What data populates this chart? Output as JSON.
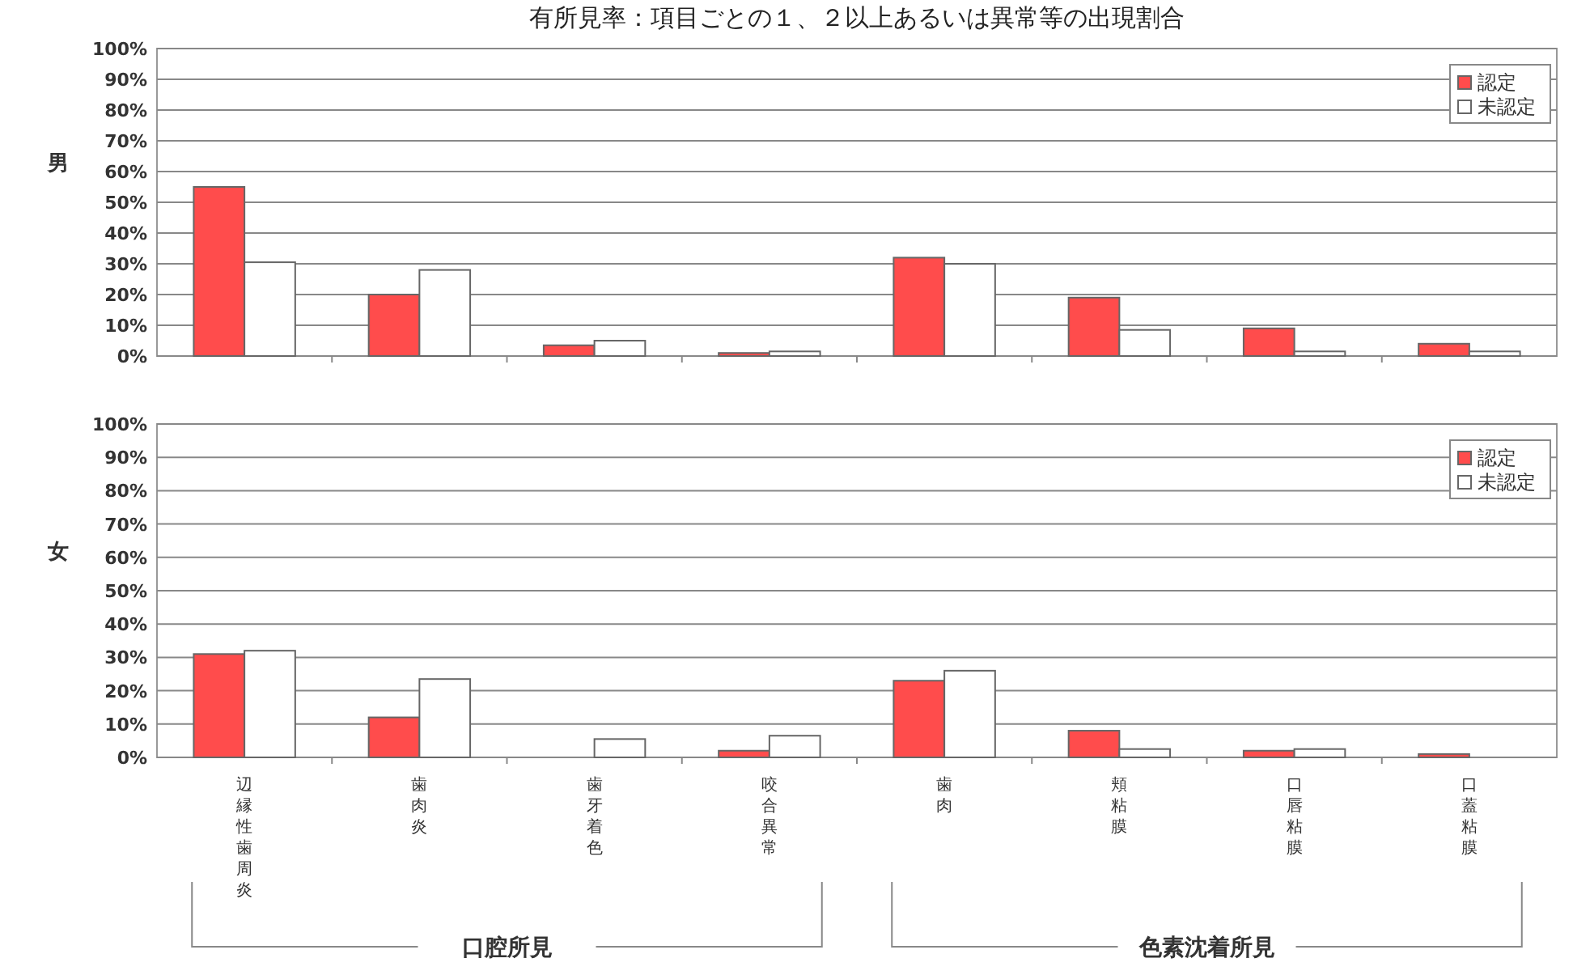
{
  "chart_data": [
    {
      "type": "bar",
      "title": "有所見率：項目ごとの１、２以上あるいは異常等の出現割合",
      "ylabel": "男",
      "categories": [
        "辺縁性歯周炎",
        "歯肉炎",
        "歯牙着色",
        "咬合異常",
        "歯肉",
        "頬粘膜",
        "口唇粘膜",
        "口蓋粘膜"
      ],
      "series": [
        {
          "name": "認定",
          "color": "#ff4c4c",
          "values": [
            55,
            20,
            3.5,
            1,
            32,
            19,
            9,
            4
          ]
        },
        {
          "name": "未認定",
          "color": "#ffffff",
          "values": [
            30.5,
            28,
            5,
            1.5,
            30,
            8.5,
            1.5,
            1.5
          ]
        }
      ],
      "ylim": [
        0,
        100
      ],
      "yticks": [
        {
          "value": 0,
          "label": "0%"
        },
        {
          "value": 10,
          "label": "10%"
        },
        {
          "value": 20,
          "label": "20%"
        },
        {
          "value": 30,
          "label": "30%"
        },
        {
          "value": 40,
          "label": "40%"
        },
        {
          "value": 50,
          "label": "50%"
        },
        {
          "value": 60,
          "label": "60%"
        },
        {
          "value": 70,
          "label": "70%"
        },
        {
          "value": 80,
          "label": "80%"
        },
        {
          "value": 90,
          "label": "90%"
        },
        {
          "value": 100,
          "label": "100%"
        }
      ],
      "grid": "y",
      "legend": "top right",
      "tick_labels": "y"
    },
    {
      "type": "bar",
      "ylabel": "女",
      "categories": [
        "辺縁性歯周炎",
        "歯肉炎",
        "歯牙着色",
        "咬合異常",
        "歯肉",
        "頬粘膜",
        "口唇粘膜",
        "口蓋粘膜"
      ],
      "series": [
        {
          "name": "認定",
          "color": "#ff4c4c",
          "values": [
            31,
            12,
            0,
            2,
            23,
            8,
            2,
            1
          ]
        },
        {
          "name": "未認定",
          "color": "#ffffff",
          "values": [
            32,
            23.5,
            5.5,
            6.5,
            26,
            2.5,
            2.5,
            0
          ]
        }
      ],
      "ylim": [
        0,
        100
      ],
      "yticks": [
        {
          "value": 0,
          "label": "0%"
        },
        {
          "value": 10,
          "label": "10%"
        },
        {
          "value": 20,
          "label": "20%"
        },
        {
          "value": 30,
          "label": "30%"
        },
        {
          "value": 40,
          "label": "40%"
        },
        {
          "value": 50,
          "label": "50%"
        },
        {
          "value": 60,
          "label": "60%"
        },
        {
          "value": 70,
          "label": "70%"
        },
        {
          "value": 80,
          "label": "80%"
        },
        {
          "value": 90,
          "label": "90%"
        },
        {
          "value": 100,
          "label": "100%"
        }
      ],
      "grid": "y",
      "legend": "top right",
      "annotations": [
        "口腔所見",
        "色素沈着所見"
      ]
    }
  ]
}
